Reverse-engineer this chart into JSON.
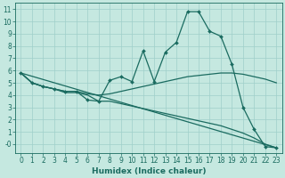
{
  "xlabel": "Humidex (Indice chaleur)",
  "xlim_left": -0.5,
  "xlim_right": 23.5,
  "ylim_bottom": -0.7,
  "ylim_top": 11.5,
  "xticks": [
    0,
    1,
    2,
    3,
    4,
    5,
    6,
    7,
    8,
    9,
    10,
    11,
    12,
    13,
    14,
    15,
    16,
    17,
    18,
    19,
    20,
    21,
    22,
    23
  ],
  "yticks": [
    0,
    1,
    2,
    3,
    4,
    5,
    6,
    7,
    8,
    9,
    10,
    11
  ],
  "ytick_labels": [
    "-0",
    "1",
    "2",
    "3",
    "4",
    "5",
    "6",
    "7",
    "8",
    "9",
    "10",
    "11"
  ],
  "background_color": "#c5e8e0",
  "grid_color": "#9fcfca",
  "line_color": "#1a6b60",
  "line1_x": [
    0,
    1,
    2,
    3,
    4,
    5,
    6,
    7,
    8,
    9,
    10,
    11,
    12,
    13,
    14,
    15,
    16,
    17,
    18,
    19,
    20,
    21,
    22,
    23
  ],
  "line1_y": [
    5.8,
    5.0,
    4.7,
    4.5,
    4.3,
    4.3,
    3.6,
    3.5,
    5.2,
    5.5,
    5.1,
    7.6,
    5.1,
    7.5,
    8.3,
    10.8,
    10.8,
    9.2,
    8.8,
    6.5,
    3.0,
    1.2,
    -0.2,
    -0.3
  ],
  "line2_x": [
    0,
    23
  ],
  "line2_y": [
    5.8,
    -0.3
  ],
  "line3_x": [
    0,
    1,
    2,
    3,
    4,
    5,
    6,
    7,
    8,
    9,
    10,
    11,
    12,
    13,
    14,
    15,
    16,
    17,
    18,
    19,
    20,
    21,
    22,
    23
  ],
  "line3_y": [
    5.8,
    5.0,
    4.7,
    4.5,
    4.3,
    4.3,
    4.1,
    4.0,
    4.1,
    4.3,
    4.5,
    4.7,
    4.9,
    5.1,
    5.3,
    5.5,
    5.6,
    5.7,
    5.8,
    5.8,
    5.7,
    5.5,
    5.3,
    5.0
  ],
  "line4_x": [
    0,
    1,
    2,
    3,
    4,
    5,
    6,
    7,
    8,
    9,
    10,
    11,
    12,
    13,
    14,
    15,
    16,
    17,
    18,
    19,
    20,
    21,
    22,
    23
  ],
  "line4_y": [
    5.8,
    5.0,
    4.7,
    4.5,
    4.2,
    4.2,
    4.0,
    3.5,
    3.5,
    3.3,
    3.1,
    2.9,
    2.7,
    2.5,
    2.3,
    2.1,
    1.9,
    1.7,
    1.5,
    1.2,
    0.9,
    0.5,
    0.0,
    -0.3
  ],
  "tick_fontsize": 5.5,
  "xlabel_fontsize": 6.5
}
